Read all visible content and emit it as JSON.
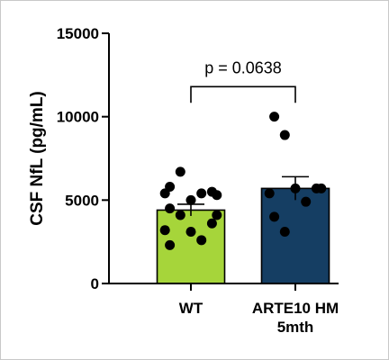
{
  "chart_data": {
    "type": "bar",
    "ylabel": "CSF NfL (pg/mL)",
    "xlabel": "",
    "ylim": [
      0,
      15000
    ],
    "yticks": [
      0,
      5000,
      10000,
      15000
    ],
    "grid": false,
    "categories": [
      {
        "lines": [
          "WT"
        ],
        "color": "#a6d53a",
        "mean": 4400,
        "sem": 350,
        "points": [
          5800,
          6700,
          5300,
          5500,
          5400,
          5000,
          5400,
          4500,
          4100,
          4100,
          3600,
          3200,
          3100,
          2600,
          2300
        ]
      },
      {
        "lines": [
          "ARTE10 HM",
          "5mth"
        ],
        "color": "#153e63",
        "mean": 5700,
        "sem": 700,
        "points": [
          10000,
          8900,
          5700,
          5700,
          5400,
          5700,
          4900,
          4000,
          3100
        ]
      }
    ],
    "annotation": {
      "text": "p = 0.0638",
      "type": "bracket",
      "y": 11800
    }
  }
}
